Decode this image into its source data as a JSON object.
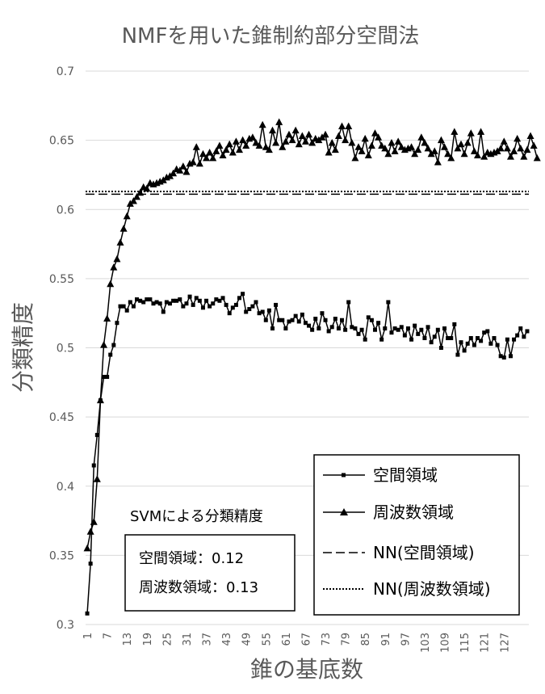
{
  "chart_data": {
    "type": "line",
    "title": "NMFを用いた錐制約部分空間法",
    "xlabel": "錐の基底数",
    "ylabel": "分類精度",
    "ylim": [
      0.3,
      0.7
    ],
    "yticks": [
      0.3,
      0.35,
      0.4,
      0.45,
      0.5,
      0.55,
      0.6,
      0.65,
      0.7
    ],
    "xlim": [
      1,
      128
    ],
    "xticks": [
      1,
      7,
      13,
      19,
      25,
      31,
      37,
      43,
      49,
      55,
      61,
      67,
      73,
      79,
      85,
      91,
      97,
      103,
      109,
      115,
      121,
      127
    ],
    "grid": "horizontal",
    "legend_position": "bottom-right",
    "series": [
      {
        "name": "空間領域",
        "marker": "square",
        "values": [
          0.308,
          0.344,
          0.415,
          0.437,
          0.462,
          0.479,
          0.479,
          0.495,
          0.502,
          0.518,
          0.53,
          0.53,
          0.527,
          0.533,
          0.53,
          0.535,
          0.534,
          0.533,
          0.535,
          0.535,
          0.532,
          0.533,
          0.532,
          0.526,
          0.533,
          0.532,
          0.534,
          0.534,
          0.535,
          0.53,
          0.532,
          0.537,
          0.531,
          0.536,
          0.534,
          0.529,
          0.534,
          0.53,
          0.532,
          0.535,
          0.534,
          0.536,
          0.531,
          0.525,
          0.529,
          0.531,
          0.536,
          0.539,
          0.526,
          0.528,
          0.53,
          0.533,
          0.525,
          0.526,
          0.52,
          0.527,
          0.514,
          0.531,
          0.52,
          0.52,
          0.514,
          0.519,
          0.52,
          0.523,
          0.519,
          0.524,
          0.518,
          0.516,
          0.513,
          0.521,
          0.514,
          0.525,
          0.52,
          0.512,
          0.515,
          0.521,
          0.514,
          0.52,
          0.513,
          0.533,
          0.515,
          0.514,
          0.51,
          0.513,
          0.506,
          0.522,
          0.52,
          0.513,
          0.518,
          0.506,
          0.514,
          0.533,
          0.511,
          0.514,
          0.513,
          0.515,
          0.509,
          0.514,
          0.506,
          0.516,
          0.51,
          0.513,
          0.507,
          0.515,
          0.504,
          0.508,
          0.513,
          0.5,
          0.514,
          0.507,
          0.507,
          0.517,
          0.495,
          0.504,
          0.498,
          0.503,
          0.507,
          0.502,
          0.507,
          0.505,
          0.511,
          0.512,
          0.503,
          0.507,
          0.502,
          0.494,
          0.493,
          0.506,
          0.494,
          0.506,
          0.509,
          0.514,
          0.508,
          0.512
        ]
      },
      {
        "name": "周波数領域",
        "marker": "triangle",
        "values": [
          0.355,
          0.367,
          0.374,
          0.405,
          0.462,
          0.502,
          0.521,
          0.546,
          0.558,
          0.564,
          0.576,
          0.586,
          0.595,
          0.604,
          0.606,
          0.609,
          0.612,
          0.616,
          0.615,
          0.619,
          0.618,
          0.619,
          0.62,
          0.621,
          0.623,
          0.624,
          0.626,
          0.629,
          0.628,
          0.631,
          0.627,
          0.633,
          0.634,
          0.645,
          0.633,
          0.64,
          0.637,
          0.641,
          0.637,
          0.642,
          0.646,
          0.639,
          0.643,
          0.647,
          0.641,
          0.649,
          0.643,
          0.65,
          0.646,
          0.651,
          0.652,
          0.648,
          0.646,
          0.661,
          0.645,
          0.643,
          0.657,
          0.648,
          0.663,
          0.645,
          0.649,
          0.654,
          0.65,
          0.657,
          0.647,
          0.653,
          0.649,
          0.654,
          0.648,
          0.651,
          0.65,
          0.652,
          0.654,
          0.641,
          0.648,
          0.643,
          0.653,
          0.66,
          0.65,
          0.66,
          0.648,
          0.637,
          0.645,
          0.642,
          0.651,
          0.639,
          0.646,
          0.655,
          0.652,
          0.646,
          0.644,
          0.64,
          0.648,
          0.642,
          0.649,
          0.645,
          0.643,
          0.644,
          0.645,
          0.64,
          0.643,
          0.652,
          0.648,
          0.644,
          0.64,
          0.642,
          0.634,
          0.65,
          0.645,
          0.64,
          0.637,
          0.656,
          0.644,
          0.647,
          0.64,
          0.648,
          0.655,
          0.642,
          0.639,
          0.656,
          0.638,
          0.641,
          0.64,
          0.641,
          0.642,
          0.644,
          0.649,
          0.644,
          0.638,
          0.642,
          0.651,
          0.644,
          0.638,
          0.643,
          0.653,
          0.646,
          0.637
        ]
      },
      {
        "name": "NN(空間領域)",
        "style": "dashed",
        "value": 0.611
      },
      {
        "name": "NN(周波数領域)",
        "style": "dotted",
        "value": 0.613
      }
    ],
    "annotation": {
      "title": "SVMによる分類精度",
      "lines": [
        "空間領域：0.12",
        "周波数領域：0.13"
      ]
    }
  }
}
